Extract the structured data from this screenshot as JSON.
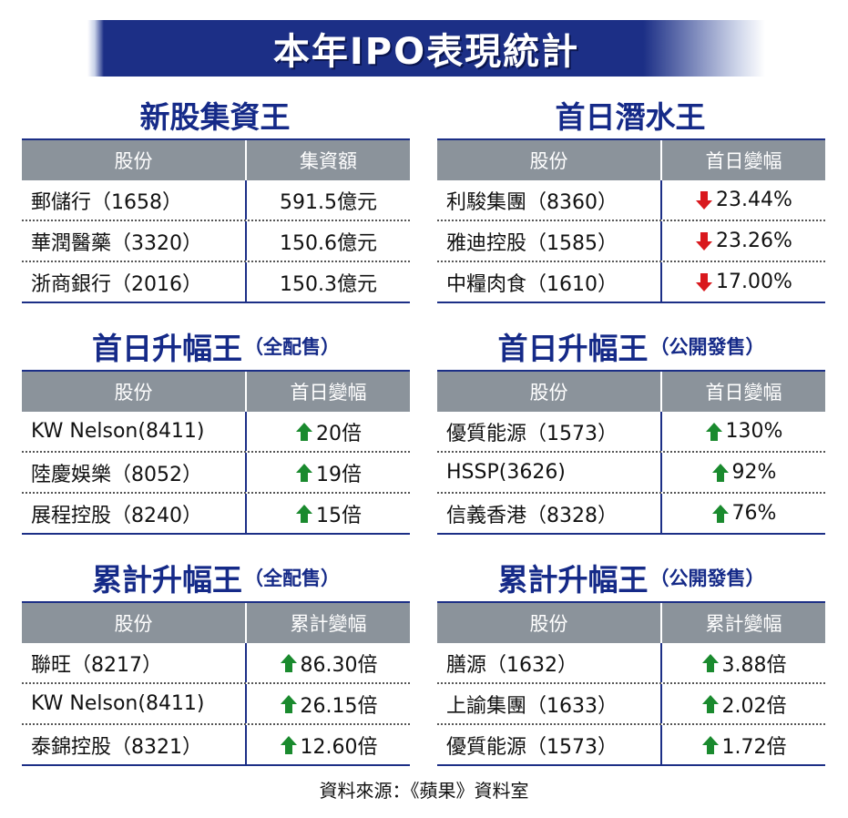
{
  "title": "本年IPO表現統計",
  "panels": [
    {
      "title": "新股集資王",
      "subtitle": "",
      "header": [
        "股份",
        "集資額"
      ],
      "rows": [
        {
          "stock": "郵儲行（1658）",
          "value": "591.5億元",
          "arrow": "none"
        },
        {
          "stock": "華潤醫藥（3320）",
          "value": "150.6億元",
          "arrow": "none"
        },
        {
          "stock": "浙商銀行（2016）",
          "value": "150.3億元",
          "arrow": "none"
        }
      ]
    },
    {
      "title": "首日潛水王",
      "subtitle": "",
      "header": [
        "股份",
        "首日變幅"
      ],
      "rows": [
        {
          "stock": "利駿集團（8360）",
          "value": "23.44%",
          "arrow": "down"
        },
        {
          "stock": "雅迪控股（1585）",
          "value": "23.26%",
          "arrow": "down"
        },
        {
          "stock": "中糧肉食（1610）",
          "value": "17.00%",
          "arrow": "down"
        }
      ]
    },
    {
      "title": "首日升幅王",
      "subtitle": "（全配售）",
      "header": [
        "股份",
        "首日變幅"
      ],
      "rows": [
        {
          "stock": "KW Nelson(8411)",
          "value": "20倍",
          "arrow": "up"
        },
        {
          "stock": "陸慶娛樂（8052）",
          "value": "19倍",
          "arrow": "up"
        },
        {
          "stock": "展程控股（8240）",
          "value": "15倍",
          "arrow": "up"
        }
      ]
    },
    {
      "title": "首日升幅王",
      "subtitle": "（公開發售）",
      "header": [
        "股份",
        "首日變幅"
      ],
      "rows": [
        {
          "stock": "優質能源（1573）",
          "value": "130%",
          "arrow": "up"
        },
        {
          "stock": "HSSP(3626)",
          "value": "92%",
          "arrow": "up"
        },
        {
          "stock": "信義香港（8328）",
          "value": "76%",
          "arrow": "up"
        }
      ]
    },
    {
      "title": "累計升幅王",
      "subtitle": "（全配售）",
      "header": [
        "股份",
        "累計變幅"
      ],
      "rows": [
        {
          "stock": "聯旺（8217）",
          "value": "86.30倍",
          "arrow": "up"
        },
        {
          "stock": "KW Nelson(8411)",
          "value": "26.15倍",
          "arrow": "up"
        },
        {
          "stock": "泰錦控股（8321）",
          "value": "12.60倍",
          "arrow": "up"
        }
      ]
    },
    {
      "title": "累計升幅王",
      "subtitle": "（公開發售）",
      "header": [
        "股份",
        "累計變幅"
      ],
      "rows": [
        {
          "stock": "膳源（1632）",
          "value": "3.88倍",
          "arrow": "up"
        },
        {
          "stock": "上諭集團（1633）",
          "value": "2.02倍",
          "arrow": "up"
        },
        {
          "stock": "優質能源（1573）",
          "value": "1.72倍",
          "arrow": "up"
        }
      ]
    }
  ],
  "source": "資料來源：《蘋果》資料室",
  "colors": {
    "title_navy": "#1c2f86",
    "header_gray": "#8b939b",
    "up_arrow": "#1a8a2e",
    "down_arrow": "#d9181d"
  }
}
